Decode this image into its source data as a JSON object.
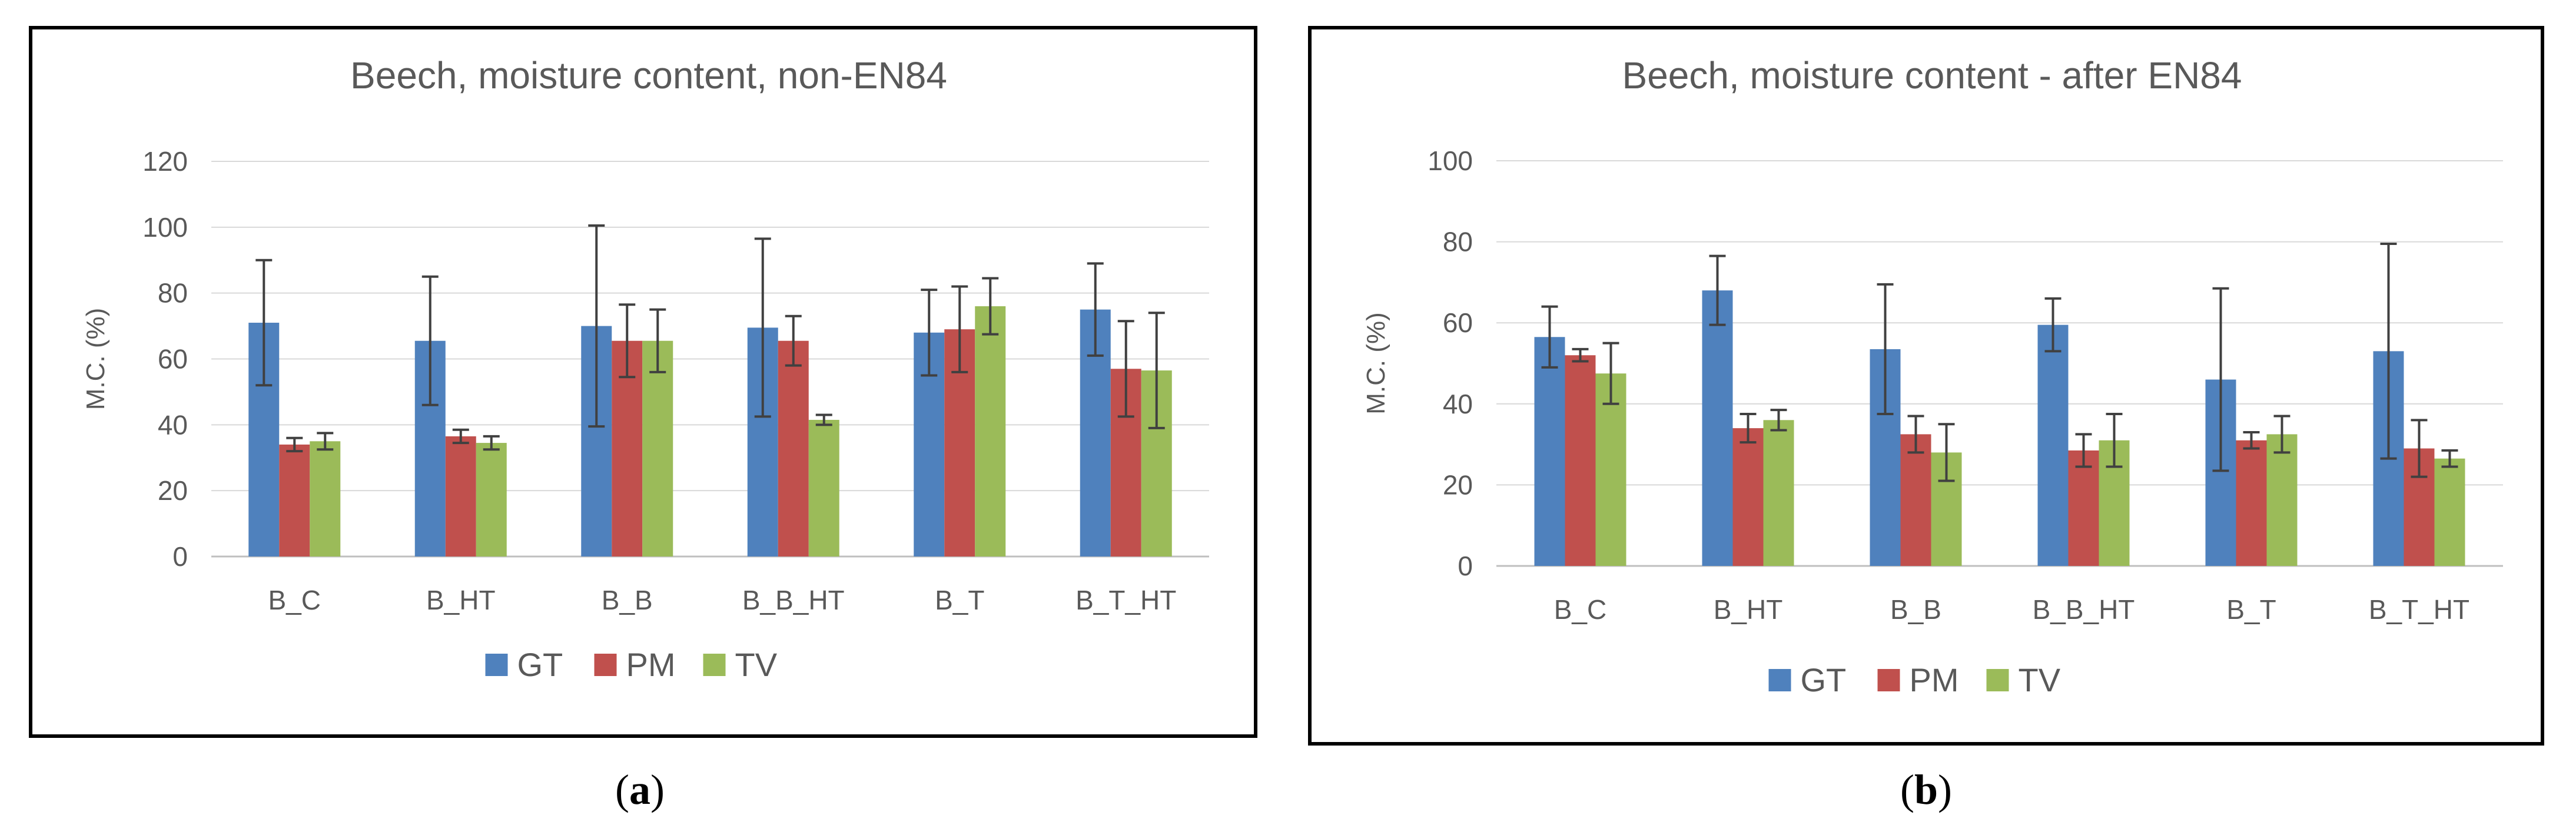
{
  "captions": [
    "a",
    "b"
  ],
  "chart_data": [
    {
      "type": "bar",
      "title": "Beech, moisture content, non-EN84",
      "xlabel": "",
      "ylabel": "M.C. (%)",
      "ylim": [
        0,
        120
      ],
      "yticks": [
        0,
        20,
        40,
        60,
        80,
        100,
        120
      ],
      "grid": true,
      "legend_position": "bottom",
      "categories": [
        "B_C",
        "B_HT",
        "B_B",
        "B_B_HT",
        "B_T",
        "B_T_HT"
      ],
      "series": [
        {
          "name": "GT",
          "color": "#4F81BD",
          "values": [
            71,
            65.5,
            70,
            69.5,
            68,
            75
          ],
          "error": [
            19,
            19.5,
            30.5,
            27,
            13,
            14
          ]
        },
        {
          "name": "PM",
          "color": "#C0504D",
          "values": [
            34,
            36.5,
            65.5,
            65.5,
            69,
            57
          ],
          "error": [
            2,
            2,
            11,
            7.5,
            13,
            14.5
          ]
        },
        {
          "name": "TV",
          "color": "#9BBB59",
          "values": [
            35,
            34.5,
            65.5,
            41.5,
            76,
            56.5
          ],
          "error": [
            2.5,
            2,
            9.5,
            1.5,
            8.5,
            17.5
          ]
        }
      ]
    },
    {
      "type": "bar",
      "title": "Beech, moisture content - after EN84",
      "xlabel": "",
      "ylabel": "M.C. (%)",
      "ylim": [
        0,
        100
      ],
      "yticks": [
        0,
        20,
        40,
        60,
        80,
        100
      ],
      "grid": true,
      "legend_position": "bottom",
      "categories": [
        "B_C",
        "B_HT",
        "B_B",
        "B_B_HT",
        "B_T",
        "B_T_HT"
      ],
      "series": [
        {
          "name": "GT",
          "color": "#4F81BD",
          "values": [
            56.5,
            68,
            53.5,
            59.5,
            46,
            53
          ],
          "error": [
            7.5,
            8.5,
            16,
            6.5,
            22.5,
            26.5
          ]
        },
        {
          "name": "PM",
          "color": "#C0504D",
          "values": [
            52,
            34,
            32.5,
            28.5,
            31,
            29
          ],
          "error": [
            1.5,
            3.5,
            4.5,
            4,
            2,
            7
          ]
        },
        {
          "name": "TV",
          "color": "#9BBB59",
          "values": [
            47.5,
            36,
            28,
            31,
            32.5,
            26.5
          ],
          "error": [
            7.5,
            2.5,
            7,
            6.5,
            4.5,
            2
          ]
        }
      ]
    }
  ]
}
